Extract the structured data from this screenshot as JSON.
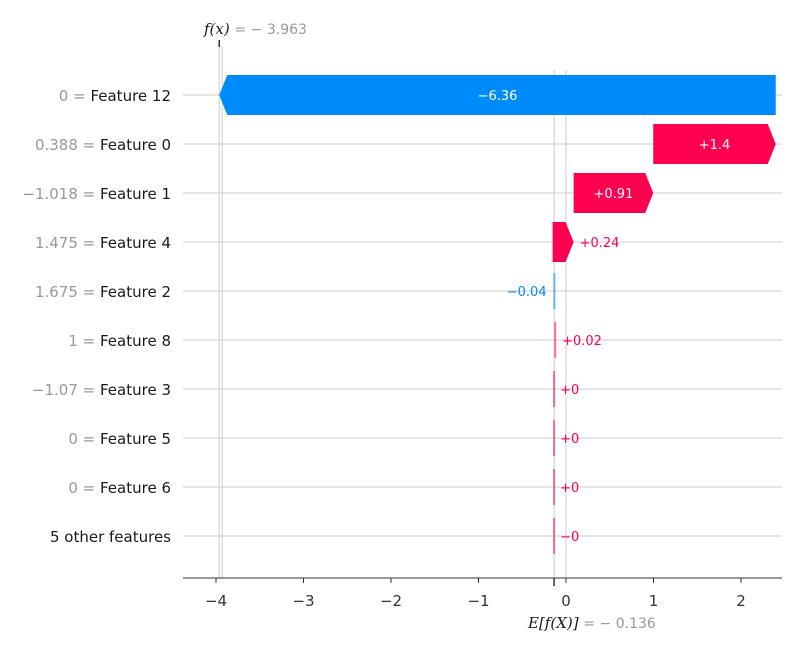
{
  "chart_data": {
    "type": "waterfall",
    "x_ticks": [
      -4,
      -3,
      -2,
      -1,
      0,
      1,
      2
    ],
    "xlim": [
      -4.35,
      2.45
    ],
    "base_value": -0.136,
    "output_value": -3.963,
    "fx_symbol": "f(x)",
    "fx_text": "= − 3.963",
    "efx_symbol": "E[f(X)]",
    "efx_text": "= − 0.136",
    "rows": [
      {
        "value_label": "0",
        "feature": "Feature 12",
        "contribution": -6.36,
        "label": "−6.36",
        "start": 2.397
      },
      {
        "value_label": "0.388",
        "feature": "Feature 0",
        "contribution": 1.4,
        "label": "+1.4",
        "start": 0.997
      },
      {
        "value_label": "−1.018",
        "feature": "Feature 1",
        "contribution": 0.91,
        "label": "+0.91",
        "start": 0.087
      },
      {
        "value_label": "1.475",
        "feature": "Feature 4",
        "contribution": 0.24,
        "label": "+0.24",
        "start": -0.153
      },
      {
        "value_label": "1.675",
        "feature": "Feature 2",
        "contribution": -0.04,
        "label": "−0.04",
        "start": -0.113
      },
      {
        "value_label": "1",
        "feature": "Feature 8",
        "contribution": 0.02,
        "label": "+0.02",
        "start": -0.133
      },
      {
        "value_label": "−1.07",
        "feature": "Feature 3",
        "contribution": 0.0,
        "label": "+0",
        "start": -0.136
      },
      {
        "value_label": "0",
        "feature": "Feature 5",
        "contribution": 0.0,
        "label": "+0",
        "start": -0.136
      },
      {
        "value_label": "0",
        "feature": "Feature 6",
        "contribution": 0.0,
        "label": "+0",
        "start": -0.136
      },
      {
        "value_label": "",
        "feature": "5 other features",
        "contribution": -0.0,
        "label": "−0",
        "start": -0.136
      }
    ],
    "colors": {
      "positive": "#ff0051",
      "negative": "#008bfb",
      "grid": "#cccccc",
      "axis": "#333333"
    }
  }
}
